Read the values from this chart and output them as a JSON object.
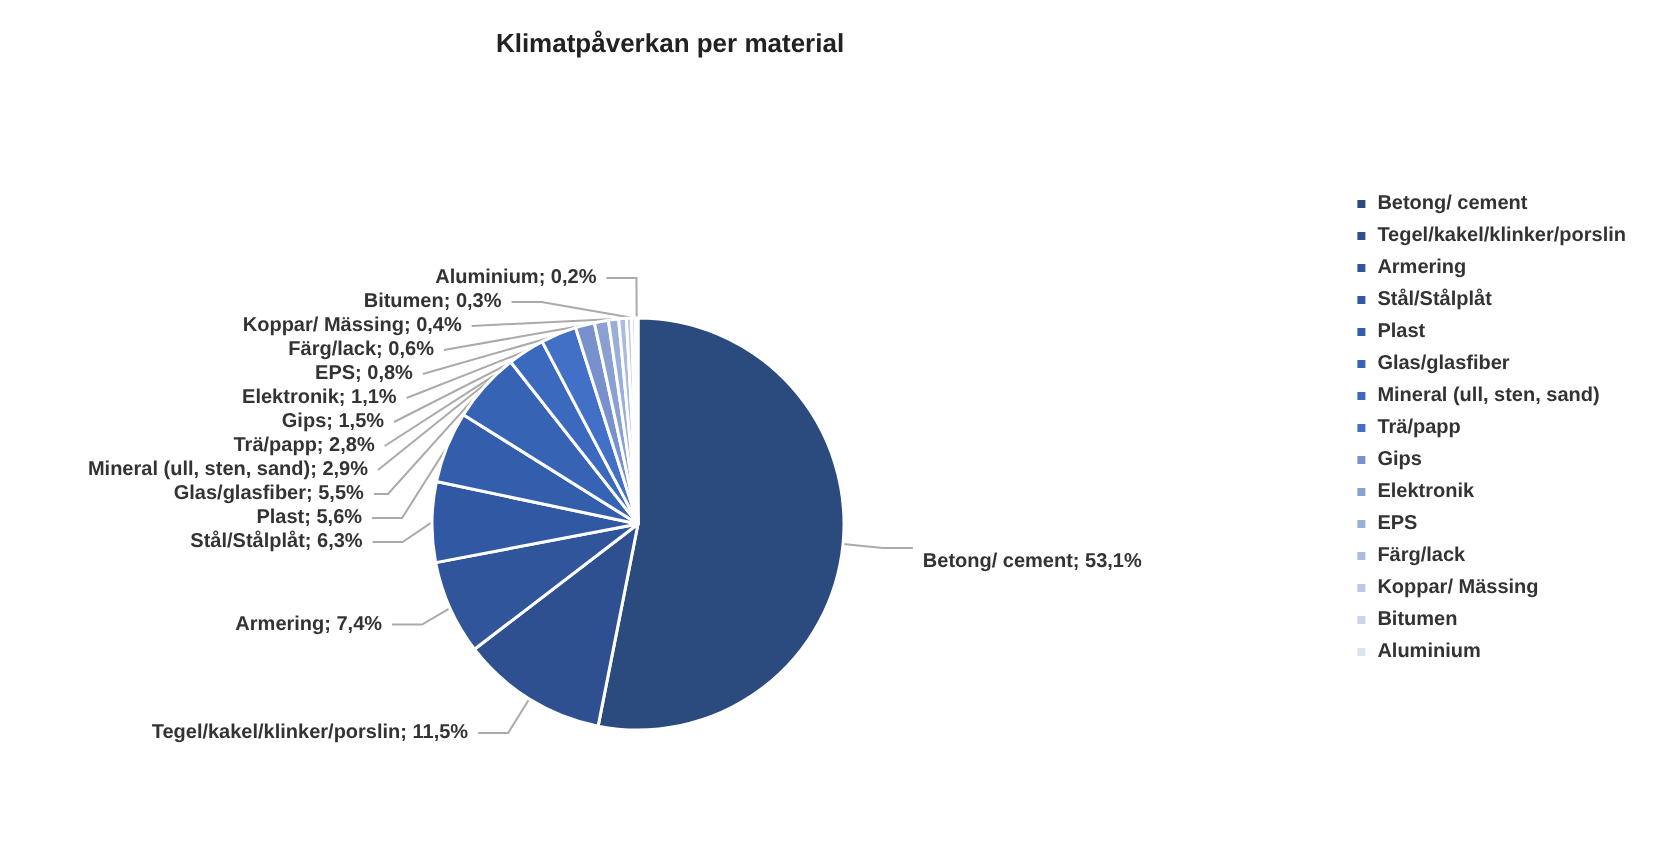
{
  "chart_data": {
    "type": "pie",
    "title": "Klimatpåverkan per material",
    "categories": [
      "Betong/ cement",
      "Tegel/kakel/klinker/porslin",
      "Armering",
      "Stål/Stålplåt",
      "Plast",
      "Glas/glasfiber",
      "Mineral (ull, sten, sand)",
      "Trä/papp",
      "Gips",
      "Elektronik",
      "EPS",
      "Färg/lack",
      "Koppar/ Mässing",
      "Bitumen",
      "Aluminium"
    ],
    "values": [
      53.1,
      11.5,
      7.4,
      6.3,
      5.6,
      5.5,
      2.9,
      2.8,
      1.5,
      1.1,
      0.8,
      0.6,
      0.4,
      0.3,
      0.2
    ],
    "value_labels": [
      "Betong/ cement; 53,1%",
      "Tegel/kakel/klinker/porslin; 11,5%",
      "Armering; 7,4%",
      "Stål/Stålplåt; 6,3%",
      "Plast; 5,6%",
      "Glas/glasfiber; 5,5%",
      "Mineral (ull, sten, sand); 2,9%",
      "Trä/papp; 2,8%",
      "Gips; 1,5%",
      "Elektronik; 1,1%",
      "EPS; 0,8%",
      "Färg/lack; 0,6%",
      "Koppar/ Mässing; 0,4%",
      "Bitumen; 0,3%",
      "Aluminium; 0,2%"
    ],
    "colors": [
      "#2b4a7e",
      "#2e5090",
      "#30559a",
      "#3159a3",
      "#335eab",
      "#3763b4",
      "#3b69bd",
      "#4170c6",
      "#7891cc",
      "#8aa0d3",
      "#9aaed9",
      "#aabbdf",
      "#bcc8e5",
      "#cbd5ea",
      "#dbe2f0"
    ],
    "legend": "right"
  }
}
